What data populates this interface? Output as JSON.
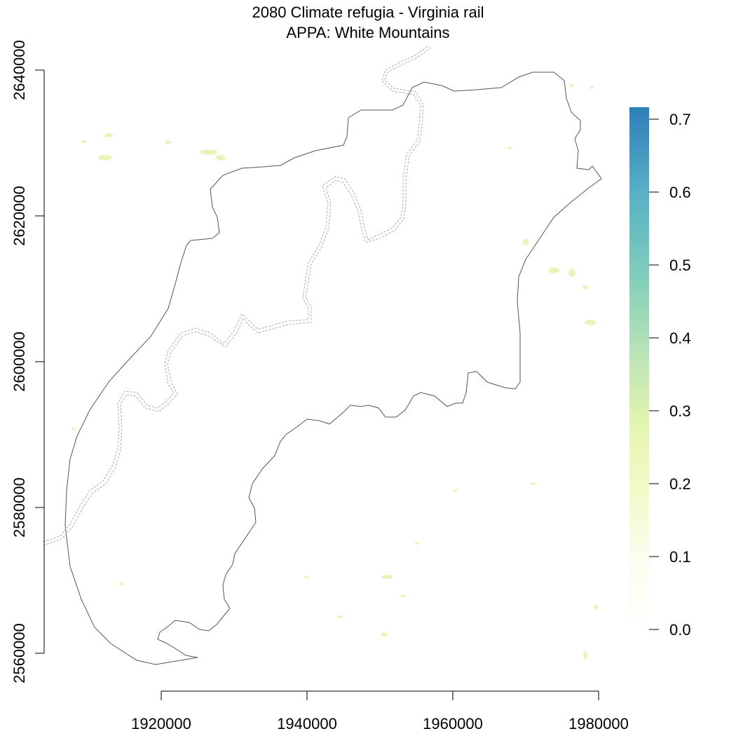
{
  "title": {
    "line1": "2080 Climate refugia - Virginia rail",
    "line2": "APPA: White Mountains"
  },
  "map": {
    "x_axis": {
      "ticks": [
        1920000,
        1940000,
        1960000,
        1980000
      ],
      "tick_labels": [
        "1920000",
        "1940000",
        "1960000",
        "1980000"
      ]
    },
    "y_axis": {
      "ticks": [
        2640000,
        2620000,
        2600000,
        2580000,
        2560000
      ],
      "tick_labels": [
        "2640000",
        "2620000",
        "2600000",
        "2580000",
        "2560000"
      ]
    },
    "layers": [
      "raster: climate refugia probability",
      "APPA region boundary (solid)",
      "Appalachian Trail corridor (dashed)"
    ]
  },
  "legend": {
    "labels": [
      "0.7",
      "0.6",
      "0.5",
      "0.4",
      "0.3",
      "0.2",
      "0.1",
      "0.0"
    ],
    "colors": [
      "#2c7fb8",
      "#41b6c4",
      "#7fcdbb",
      "#c7e9b4",
      "#edf8b1",
      "#ffffd9",
      "#ffffff"
    ]
  }
}
